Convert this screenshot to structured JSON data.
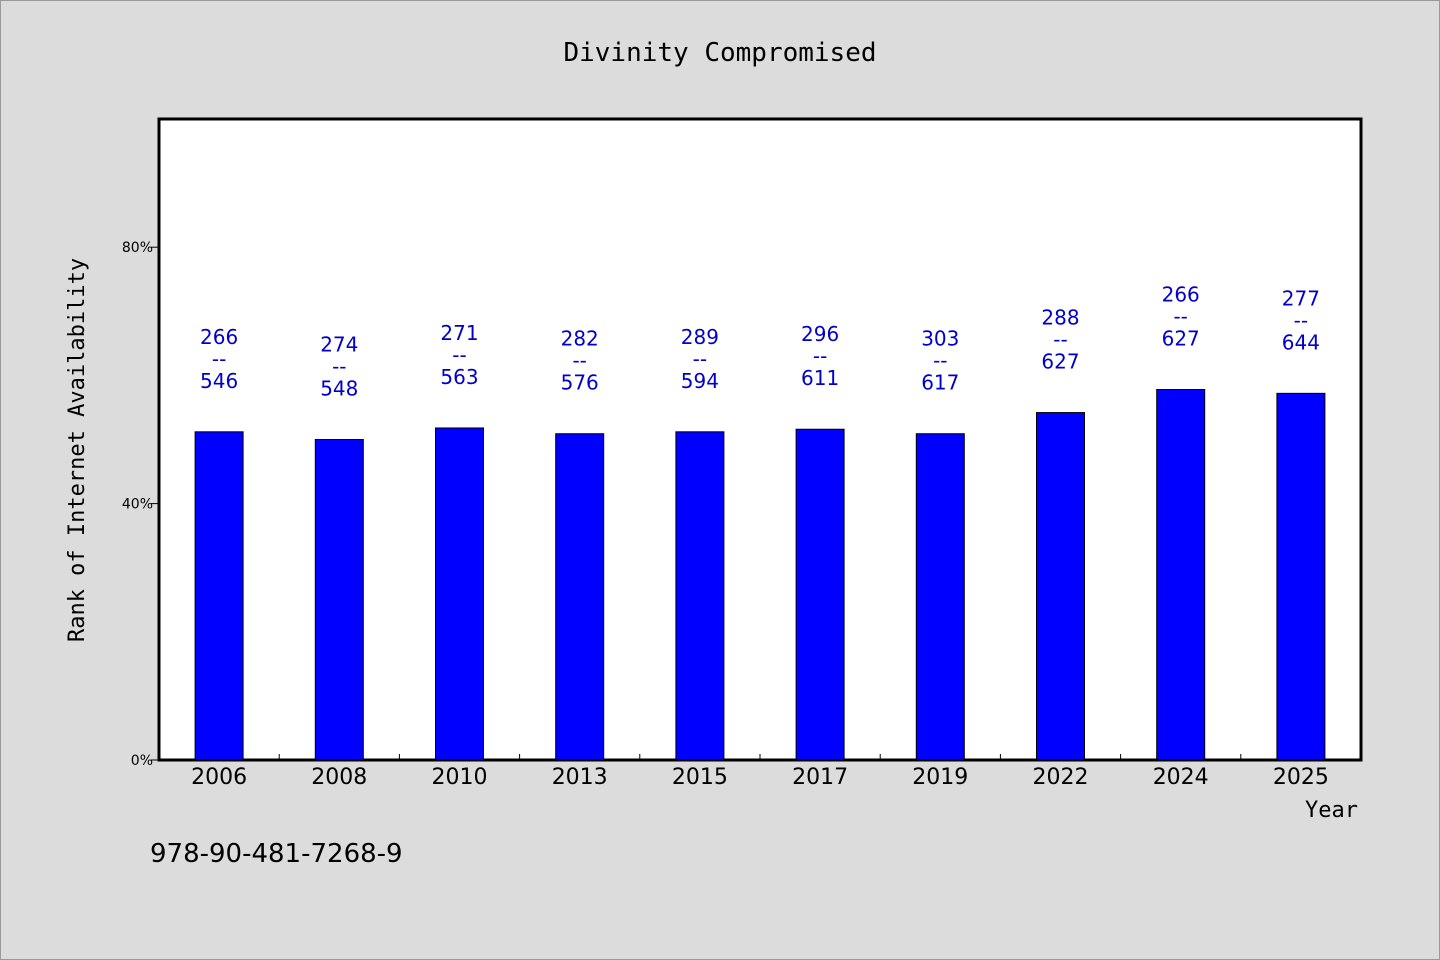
{
  "chart_data": {
    "type": "bar",
    "title": "Divinity Compromised",
    "xlabel": "Year",
    "ylabel": "Rank of Internet Availability",
    "ylim": [
      0,
      100
    ],
    "yticks": [
      0,
      40,
      80
    ],
    "ytick_labels": [
      "0%",
      "40%",
      "80%"
    ],
    "categories": [
      "2006",
      "2008",
      "2010",
      "2013",
      "2015",
      "2017",
      "2019",
      "2022",
      "2024",
      "2025"
    ],
    "values": [
      51.2,
      50.0,
      51.8,
      50.9,
      51.2,
      51.6,
      50.9,
      54.2,
      57.8,
      57.2
    ],
    "labels": [
      {
        "top": "266",
        "sep": "--",
        "bottom": "546"
      },
      {
        "top": "274",
        "sep": "--",
        "bottom": "548"
      },
      {
        "top": "271",
        "sep": "--",
        "bottom": "563"
      },
      {
        "top": "282",
        "sep": "--",
        "bottom": "576"
      },
      {
        "top": "289",
        "sep": "--",
        "bottom": "594"
      },
      {
        "top": "296",
        "sep": "--",
        "bottom": "611"
      },
      {
        "top": "303",
        "sep": "--",
        "bottom": "617"
      },
      {
        "top": "288",
        "sep": "--",
        "bottom": "627"
      },
      {
        "top": "266",
        "sep": "--",
        "bottom": "627"
      },
      {
        "top": "277",
        "sep": "--",
        "bottom": "644"
      }
    ],
    "bar_color": "#0000ff",
    "label_color": "#0000cc",
    "grid": false,
    "legend": "none"
  },
  "footer": {
    "isbn": "978-90-481-7268-9"
  }
}
